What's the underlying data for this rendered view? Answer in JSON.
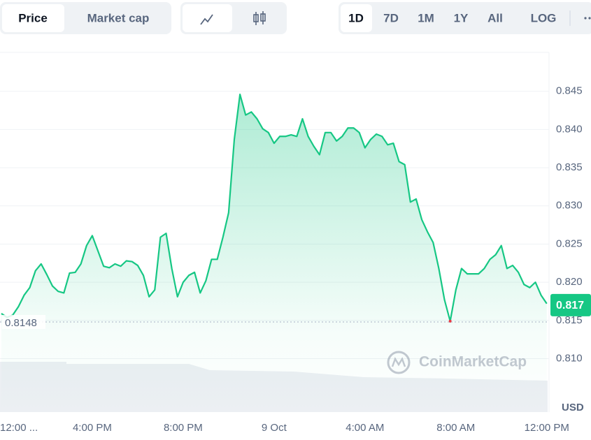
{
  "toolbar": {
    "view_tabs": [
      "Price",
      "Market cap"
    ],
    "active_view": 0,
    "range_tabs": [
      "1D",
      "7D",
      "1M",
      "1Y",
      "All",
      "LOG"
    ],
    "active_range": 0
  },
  "chart_data": {
    "type": "line",
    "watermark": "CoinMarketCap",
    "unit_label": "USD",
    "series": [
      {
        "name": "Price",
        "color": "#16c784",
        "x": [
          0,
          0.25,
          0.5,
          0.75,
          1,
          1.25,
          1.5,
          1.75,
          2,
          2.25,
          2.5,
          2.75,
          3,
          3.25,
          3.5,
          3.75,
          4,
          4.25,
          4.5,
          4.75,
          5,
          5.25,
          5.5,
          5.75,
          6,
          6.25,
          6.5,
          6.75,
          7,
          7.25,
          7.5,
          7.75,
          8,
          8.25,
          8.5,
          8.75,
          9,
          9.25,
          9.5,
          9.75,
          10,
          10.25,
          10.5,
          10.75,
          11,
          11.25,
          11.5,
          11.75,
          12,
          12.25,
          12.5,
          12.75,
          13,
          13.25,
          13.5,
          13.75,
          14,
          14.25,
          14.5,
          14.75,
          15,
          15.25,
          15.5,
          15.75,
          16,
          16.25,
          16.5,
          16.75,
          17,
          17.25,
          17.5,
          17.75,
          18,
          18.25,
          18.5,
          18.75,
          19,
          19.25,
          19.5,
          19.75,
          20,
          20.25,
          20.5,
          20.75,
          21,
          21.25,
          21.5,
          21.75,
          22,
          22.25,
          22.5,
          22.75,
          23,
          23.25,
          23.5,
          23.75,
          24
        ],
        "values": [
          0.8159,
          0.8154,
          0.8157,
          0.8168,
          0.8183,
          0.8193,
          0.8215,
          0.8224,
          0.821,
          0.8195,
          0.8188,
          0.8186,
          0.8212,
          0.8213,
          0.8224,
          0.8248,
          0.8261,
          0.8241,
          0.8221,
          0.8219,
          0.8224,
          0.8221,
          0.8228,
          0.8227,
          0.8222,
          0.8209,
          0.8181,
          0.819,
          0.8259,
          0.8264,
          0.8218,
          0.8181,
          0.82,
          0.8209,
          0.8213,
          0.8186,
          0.8202,
          0.823,
          0.823,
          0.8259,
          0.8291,
          0.8387,
          0.8446,
          0.8419,
          0.8423,
          0.8414,
          0.8401,
          0.8396,
          0.8382,
          0.8391,
          0.8391,
          0.8393,
          0.8391,
          0.8414,
          0.8391,
          0.8378,
          0.8367,
          0.8396,
          0.8396,
          0.8385,
          0.8391,
          0.8402,
          0.8402,
          0.8396,
          0.8376,
          0.8387,
          0.8394,
          0.8391,
          0.838,
          0.8382,
          0.8358,
          0.8354,
          0.8305,
          0.8309,
          0.8282,
          0.8266,
          0.8252,
          0.8218,
          0.8177,
          0.8149,
          0.819,
          0.8218,
          0.8211,
          0.8211,
          0.8211,
          0.8218,
          0.823,
          0.8236,
          0.8248,
          0.8218,
          0.8222,
          0.8213,
          0.8197,
          0.8193,
          0.82,
          0.8183,
          0.8172
        ]
      }
    ],
    "reference_line": 0.8148,
    "current_price": 0.817,
    "xlim": [
      -0.06,
      24.1
    ],
    "xticks": [
      {
        "value": 0,
        "label": "12:00 ..."
      },
      {
        "value": 4,
        "label": "4:00 PM"
      },
      {
        "value": 8,
        "label": "8:00 PM"
      },
      {
        "value": 12,
        "label": "9 Oct"
      },
      {
        "value": 16,
        "label": "4:00 AM"
      },
      {
        "value": 20,
        "label": "8:00 AM"
      },
      {
        "value": 24,
        "label": "12:00 PM"
      }
    ],
    "ylim": [
      0.803,
      0.8501
    ],
    "yticks": [
      {
        "value": 0.81,
        "label": "0.810"
      },
      0.815,
      {
        "value": 0.82,
        "label": "0.820"
      },
      0.825,
      {
        "value": 0.83,
        "label": "0.830"
      },
      0.835,
      {
        "value": 0.84,
        "label": "0.840"
      },
      0.845
    ],
    "grid": true
  }
}
